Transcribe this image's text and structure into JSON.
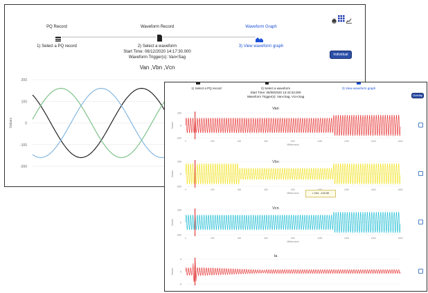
{
  "back_window": {
    "toolbar_icons": [
      "print-icon",
      "grid-icon",
      "chart-small-icon"
    ],
    "steps": [
      {
        "header": "PQ Record",
        "action": "1) Select a PQ record",
        "icon": "list-icon"
      },
      {
        "header": "Waveform Record",
        "action": "2) Select a waveform",
        "icon": "file-icon"
      },
      {
        "header": "Waveform Graph",
        "action": "3) View waveform graph",
        "icon": "area-chart-icon"
      }
    ],
    "start_time": "Start Time: 06/12/2020 14:17:30.000",
    "trigger": "Waveform Trigger(s): Van<Sag",
    "individual_button": "Individual",
    "chart_title": "Van ,Vbn ,Vcn",
    "ylabel": "Values"
  },
  "front_window": {
    "steps": [
      {
        "action": "1) Select a PQ record"
      },
      {
        "action": "2) Select a waveform"
      },
      {
        "action": "3) View waveform graph"
      }
    ],
    "start_time": "Start Time: 06/08/2020 13:43:33.000",
    "trigger": "Waveform Trigger(s): Van<Sag, Vcn<Sag",
    "overlay_button": "Overlay",
    "tooltip": "• Vbn: -145.85",
    "x_label": "Milliseconds"
  },
  "chart_data": [
    {
      "type": "line",
      "title": "Van ,Vbn ,Vcn",
      "ylabel": "Values",
      "ylim": [
        -200,
        200
      ],
      "yticks": [
        "200",
        "100",
        "0",
        "-100",
        "-200"
      ],
      "series": [
        {
          "name": "Van",
          "color": "#222222",
          "amplitude": 160
        },
        {
          "name": "Vbn",
          "color": "#7fc28a",
          "amplitude": 160
        },
        {
          "name": "Vcn",
          "color": "#86b7e0",
          "amplitude": 160
        }
      ]
    },
    {
      "type": "line",
      "panels": [
        {
          "title": "Van",
          "color": "#e83e3e",
          "ylim": [
            -200,
            200
          ],
          "yticks": [
            "200",
            "0",
            "-200"
          ],
          "sag_start_ms": 1100
        },
        {
          "title": "Vbn",
          "color": "#f2e32a",
          "ylim": [
            -200,
            200
          ],
          "yticks": [
            "200",
            "0",
            "-200"
          ],
          "sag_start_ms": 400
        },
        {
          "title": "Vcn",
          "color": "#27c0d6",
          "ylim": [
            -200,
            200
          ],
          "yticks": [
            "200",
            "0",
            "-200"
          ],
          "sag_start_ms": 1100
        },
        {
          "title": "Ia",
          "color": "#e83e3e",
          "ylim": [
            -4,
            4
          ],
          "yticks": [
            "4",
            "0",
            "-4"
          ],
          "sag_start_ms": 400
        }
      ],
      "xticks": [
        "0",
        "100",
        "200",
        "300",
        "400",
        "500",
        "600",
        "700",
        "800",
        "900",
        "1000",
        "1100",
        "1200",
        "1300",
        "1400",
        "1500",
        "1600"
      ],
      "xlabel": "Milliseconds"
    }
  ]
}
